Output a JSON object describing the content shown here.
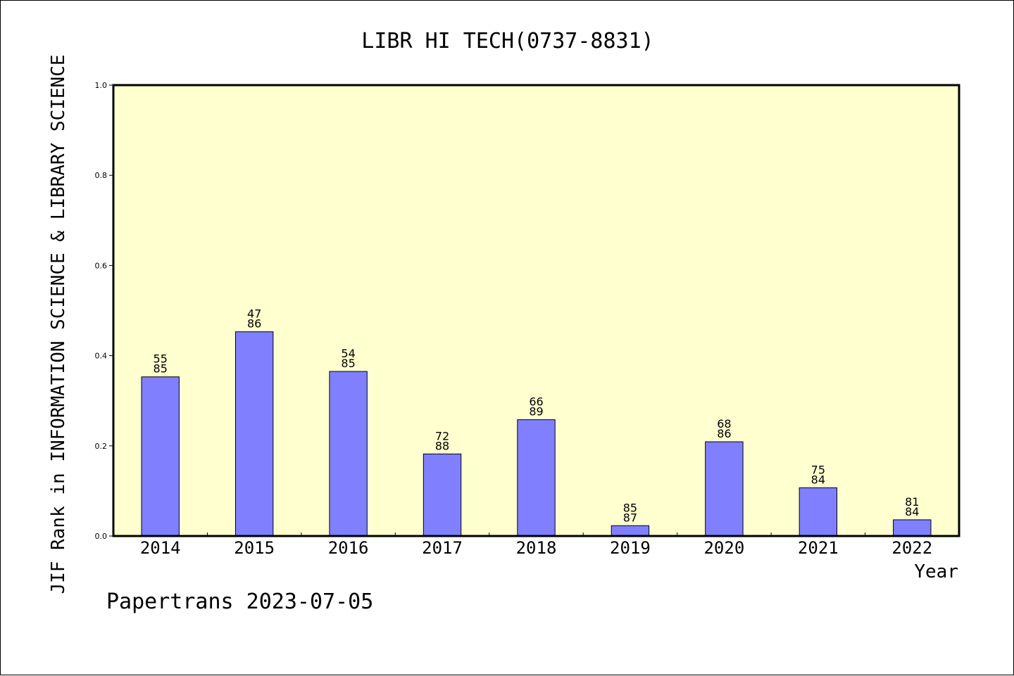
{
  "chart_data": {
    "type": "bar",
    "title": "LIBR HI TECH(0737-8831)",
    "xlabel": "Year",
    "ylabel": "JIF Rank in INFORMATION SCIENCE & LIBRARY SCIENCE",
    "ylim": [
      0,
      1.0
    ],
    "yticks": [
      "0.0",
      "0.2",
      "0.4",
      "0.6",
      "0.8",
      "1.0"
    ],
    "categories": [
      "2014",
      "2015",
      "2016",
      "2017",
      "2018",
      "2019",
      "2020",
      "2021",
      "2022"
    ],
    "values": [
      0.353,
      0.453,
      0.365,
      0.182,
      0.258,
      0.023,
      0.209,
      0.107,
      0.036
    ],
    "bar_labels": [
      [
        "55",
        "85"
      ],
      [
        "47",
        "86"
      ],
      [
        "54",
        "85"
      ],
      [
        "72",
        "88"
      ],
      [
        "66",
        "89"
      ],
      [
        "85",
        "87"
      ],
      [
        "68",
        "86"
      ],
      [
        "75",
        "84"
      ],
      [
        "81",
        "84"
      ]
    ],
    "grid": false,
    "colors": {
      "plot_bg": "#ffffd0",
      "bar": "#8080ff",
      "axis": "#000000"
    }
  },
  "footer": "Papertrans 2023-07-05"
}
